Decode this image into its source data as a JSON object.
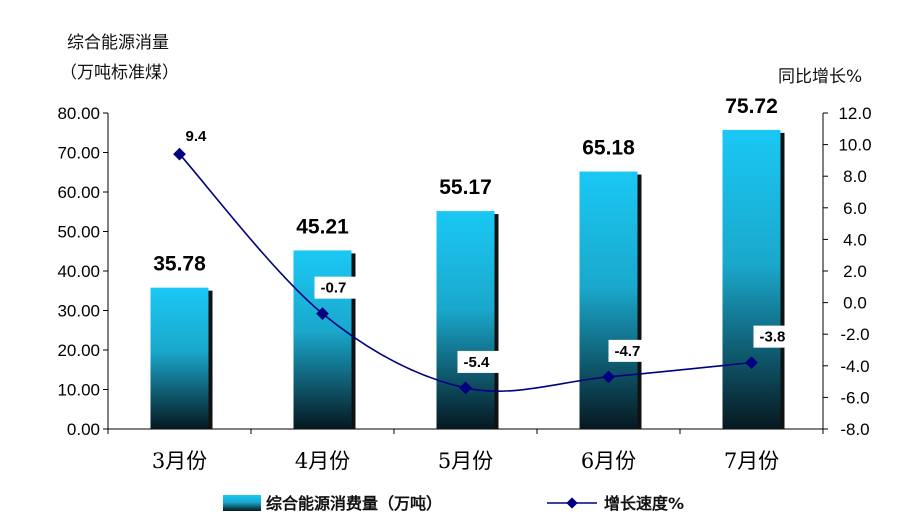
{
  "chart_data": {
    "type": "bar+line",
    "categories": [
      "3月份",
      "4月份",
      "5月份",
      "6月份",
      "7月份"
    ],
    "series": [
      {
        "name": "综合能源消费量（万吨）",
        "type": "bar",
        "axis": "left",
        "values": [
          35.78,
          45.21,
          55.17,
          65.18,
          75.72
        ],
        "labels": [
          "35.78",
          "45.21",
          "55.17",
          "65.18",
          "75.72"
        ]
      },
      {
        "name": "增长速度%",
        "type": "line",
        "axis": "right",
        "values": [
          9.4,
          -0.7,
          -5.4,
          -4.7,
          -3.8
        ],
        "labels": [
          "9.4",
          "-0.7",
          "-5.4",
          "-4.7",
          "-3.8"
        ]
      }
    ],
    "y_left": {
      "title_line1": "综合能源消量",
      "title_line2": "（万吨标准煤）",
      "ylim": [
        0,
        80
      ],
      "ticks": [
        "0.00",
        "10.00",
        "20.00",
        "30.00",
        "40.00",
        "50.00",
        "60.00",
        "70.00",
        "80.00"
      ]
    },
    "y_right": {
      "title": "同比增长%",
      "ylim": [
        -8,
        12
      ],
      "ticks": [
        "-8.0",
        "-6.0",
        "-4.0",
        "-2.0",
        "0.0",
        "2.0",
        "4.0",
        "6.0",
        "8.0",
        "10.0",
        "12.0"
      ]
    },
    "grid": false,
    "legend": "bottom",
    "colors": {
      "bar_top": "#1ac8f5",
      "bar_bottom": "#061820",
      "line": "#000080"
    }
  }
}
